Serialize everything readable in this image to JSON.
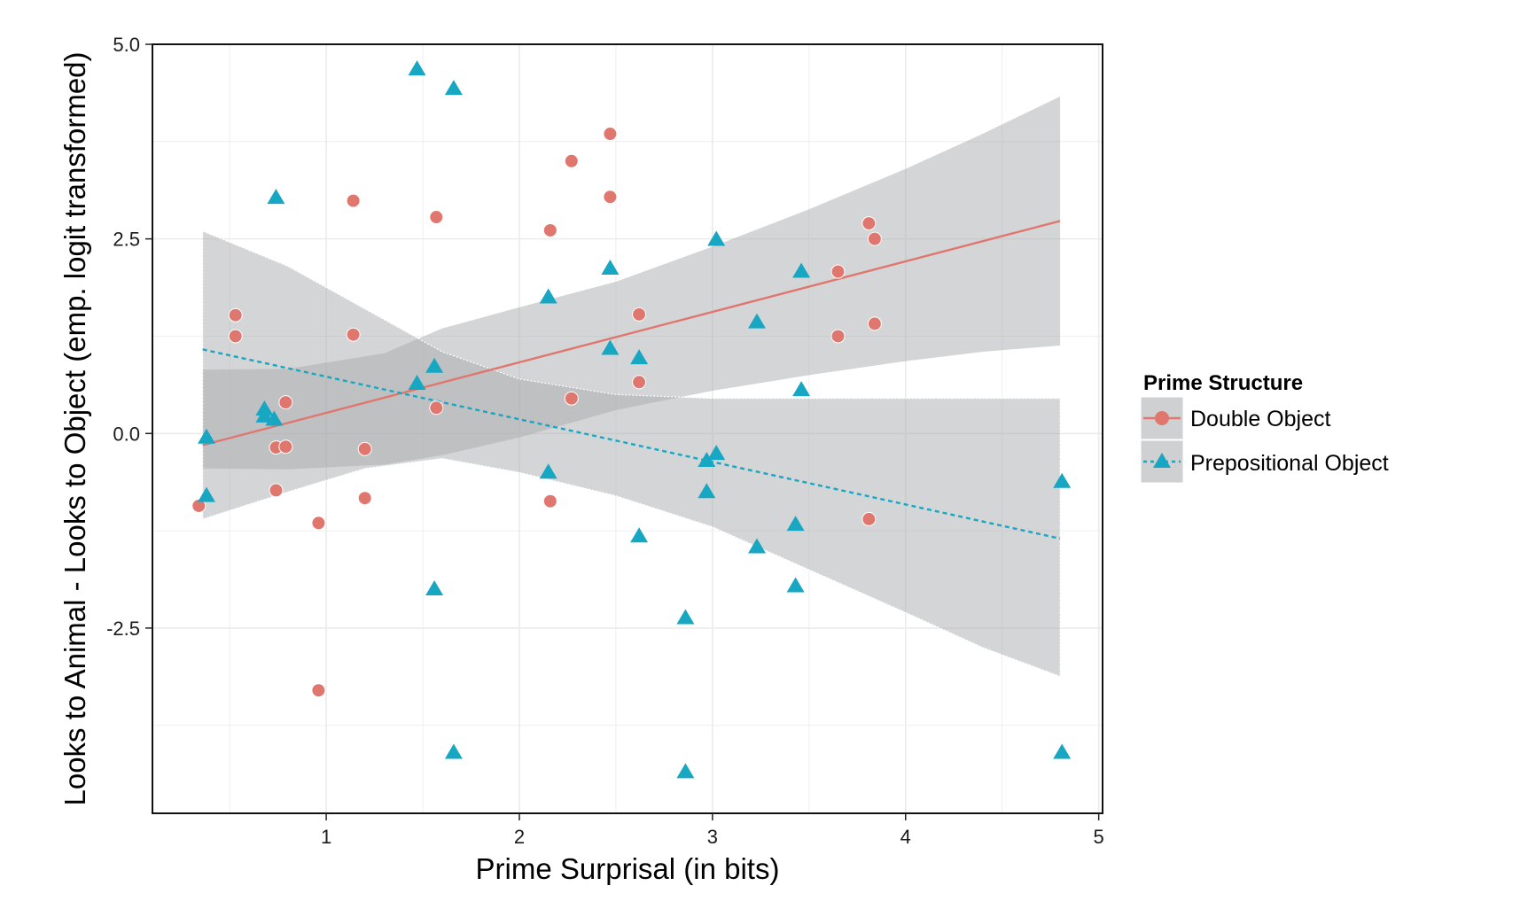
{
  "chart_data": {
    "type": "scatter",
    "xlabel": "Prime Surprisal (in bits)",
    "ylabel": "Looks to Animal - Looks to Object (emp. logit transformed)",
    "xlim": [
      0.1,
      5.02
    ],
    "ylim": [
      -4.88,
      5.0
    ],
    "x_ticks": [
      1,
      2,
      3,
      4,
      5
    ],
    "x_tick_labels": [
      "1",
      "2",
      "3",
      "4",
      "5"
    ],
    "y_ticks": [
      -2.5,
      0.0,
      2.5,
      5.0
    ],
    "y_tick_labels": [
      "-2.5",
      "0.0",
      "2.5",
      "5.0"
    ],
    "grid": true,
    "legend": {
      "title": "Prime Structure",
      "position": "right",
      "entries": [
        "Double Object",
        "Prepositional Object"
      ]
    },
    "colors": {
      "double_object": "#E0776F",
      "prepositional_object": "#18A7C3",
      "ribbon": "#A9ABAD",
      "grid": "#EBEBEB"
    },
    "series": [
      {
        "name": "Double Object",
        "marker": "circle",
        "line_style": "solid",
        "points": [
          [
            0.34,
            -0.93
          ],
          [
            0.53,
            1.52
          ],
          [
            0.53,
            1.25
          ],
          [
            0.74,
            -0.73
          ],
          [
            0.74,
            -0.18
          ],
          [
            0.79,
            0.4
          ],
          [
            0.79,
            -0.17
          ],
          [
            0.96,
            -1.15
          ],
          [
            0.96,
            -3.3
          ],
          [
            1.14,
            2.99
          ],
          [
            1.14,
            1.27
          ],
          [
            1.2,
            -0.2
          ],
          [
            1.2,
            -0.83
          ],
          [
            1.57,
            2.78
          ],
          [
            1.57,
            0.33
          ],
          [
            2.16,
            2.61
          ],
          [
            2.16,
            -0.87
          ],
          [
            2.27,
            3.5
          ],
          [
            2.27,
            0.45
          ],
          [
            2.47,
            3.85
          ],
          [
            2.47,
            3.04
          ],
          [
            2.62,
            1.53
          ],
          [
            2.62,
            0.66
          ],
          [
            3.65,
            2.08
          ],
          [
            3.65,
            1.25
          ],
          [
            3.81,
            2.7
          ],
          [
            3.81,
            -1.1
          ],
          [
            3.84,
            2.5
          ],
          [
            3.84,
            1.41
          ]
        ],
        "fit": {
          "x": [
            0.36,
            4.8
          ],
          "y": [
            -0.15,
            2.73
          ]
        },
        "ci": {
          "x": [
            0.36,
            0.8,
            1.3,
            1.6,
            2.0,
            2.5,
            3.0,
            3.5,
            4.0,
            4.4,
            4.8
          ],
          "lower": [
            -0.45,
            -0.46,
            -0.4,
            -0.28,
            -0.05,
            0.3,
            0.55,
            0.75,
            0.93,
            1.05,
            1.13
          ],
          "upper": [
            0.82,
            0.83,
            1.03,
            1.35,
            1.62,
            1.95,
            2.4,
            2.88,
            3.4,
            3.85,
            4.33
          ]
        }
      },
      {
        "name": "Prepositional Object",
        "marker": "triangle",
        "line_style": "dashed",
        "points": [
          [
            0.38,
            -0.05
          ],
          [
            0.38,
            -0.8
          ],
          [
            0.68,
            0.31
          ],
          [
            0.68,
            0.22
          ],
          [
            0.73,
            0.18
          ],
          [
            0.74,
            3.03
          ],
          [
            1.47,
            4.68
          ],
          [
            1.47,
            0.64
          ],
          [
            1.56,
            0.86
          ],
          [
            1.56,
            -2.0
          ],
          [
            1.66,
            4.43
          ],
          [
            1.66,
            -4.1
          ],
          [
            2.15,
            1.75
          ],
          [
            2.15,
            -0.5
          ],
          [
            2.47,
            2.12
          ],
          [
            2.47,
            1.09
          ],
          [
            2.62,
            0.97
          ],
          [
            2.62,
            -1.32
          ],
          [
            2.86,
            -2.37
          ],
          [
            2.86,
            -4.35
          ],
          [
            2.97,
            -0.35
          ],
          [
            2.97,
            -0.75
          ],
          [
            3.02,
            2.49
          ],
          [
            3.02,
            -0.26
          ],
          [
            3.23,
            1.43
          ],
          [
            3.23,
            -1.46
          ],
          [
            3.43,
            -1.17
          ],
          [
            3.43,
            -1.96
          ],
          [
            3.46,
            2.08
          ],
          [
            3.46,
            0.56
          ],
          [
            4.81,
            -0.62
          ],
          [
            4.81,
            -4.1
          ]
        ],
        "fit": {
          "x": [
            0.36,
            4.8
          ],
          "y": [
            1.08,
            -1.35
          ]
        },
        "ci": {
          "x": [
            0.36,
            0.8,
            1.2,
            1.6,
            2.0,
            2.5,
            3.0,
            3.5,
            4.0,
            4.4,
            4.8
          ],
          "lower": [
            -1.1,
            -0.75,
            -0.45,
            -0.32,
            -0.5,
            -0.8,
            -1.2,
            -1.75,
            -2.3,
            -2.75,
            -3.12
          ],
          "upper": [
            2.6,
            2.15,
            1.6,
            1.05,
            0.7,
            0.5,
            0.45,
            0.45,
            0.45,
            0.45,
            0.45
          ]
        }
      }
    ]
  }
}
